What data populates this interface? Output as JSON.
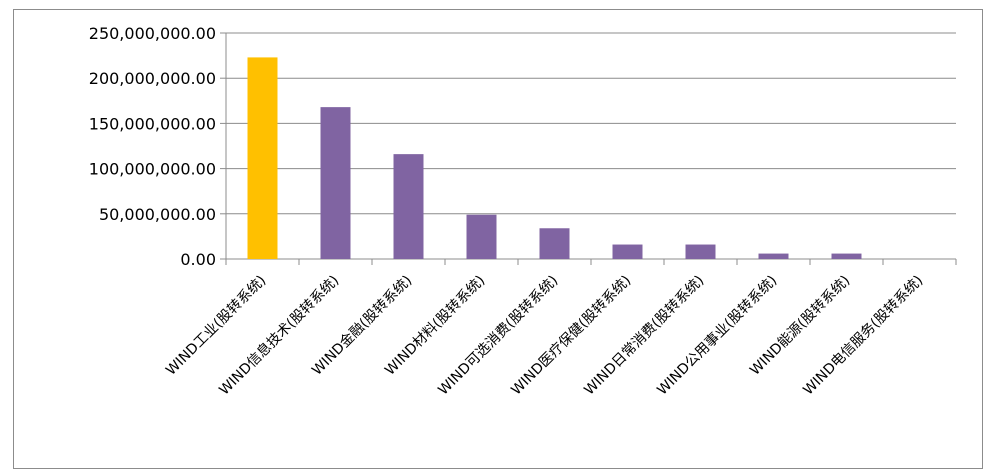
{
  "chart_data": {
    "type": "bar",
    "categories": [
      "WIND工业(股转系统)",
      "WIND信息技术(股转系统)",
      "WIND金融(股转系统)",
      "WIND材料(股转系统)",
      "WIND可选消费(股转系统)",
      "WIND医疗保健(股转系统)",
      "WIND日常消费(股转系统)",
      "WIND公用事业(股转系统)",
      "WIND能源(股转系统)",
      "WIND电信服务(股转系统)"
    ],
    "values": [
      223000000,
      168000000,
      116000000,
      49000000,
      34000000,
      16000000,
      16000000,
      6000000,
      6000000,
      0
    ],
    "colors": [
      "#FFC000",
      "#8064A2",
      "#8064A2",
      "#8064A2",
      "#8064A2",
      "#8064A2",
      "#8064A2",
      "#8064A2",
      "#8064A2",
      "#8064A2"
    ],
    "yticks": [
      "0.00",
      "50,000,000.00",
      "100,000,000.00",
      "150,000,000.00",
      "200,000,000.00",
      "250,000,000.00"
    ],
    "ylim": [
      0,
      250000000
    ],
    "title": "",
    "xlabel": "",
    "ylabel": "",
    "grid": true,
    "legend": "none"
  }
}
